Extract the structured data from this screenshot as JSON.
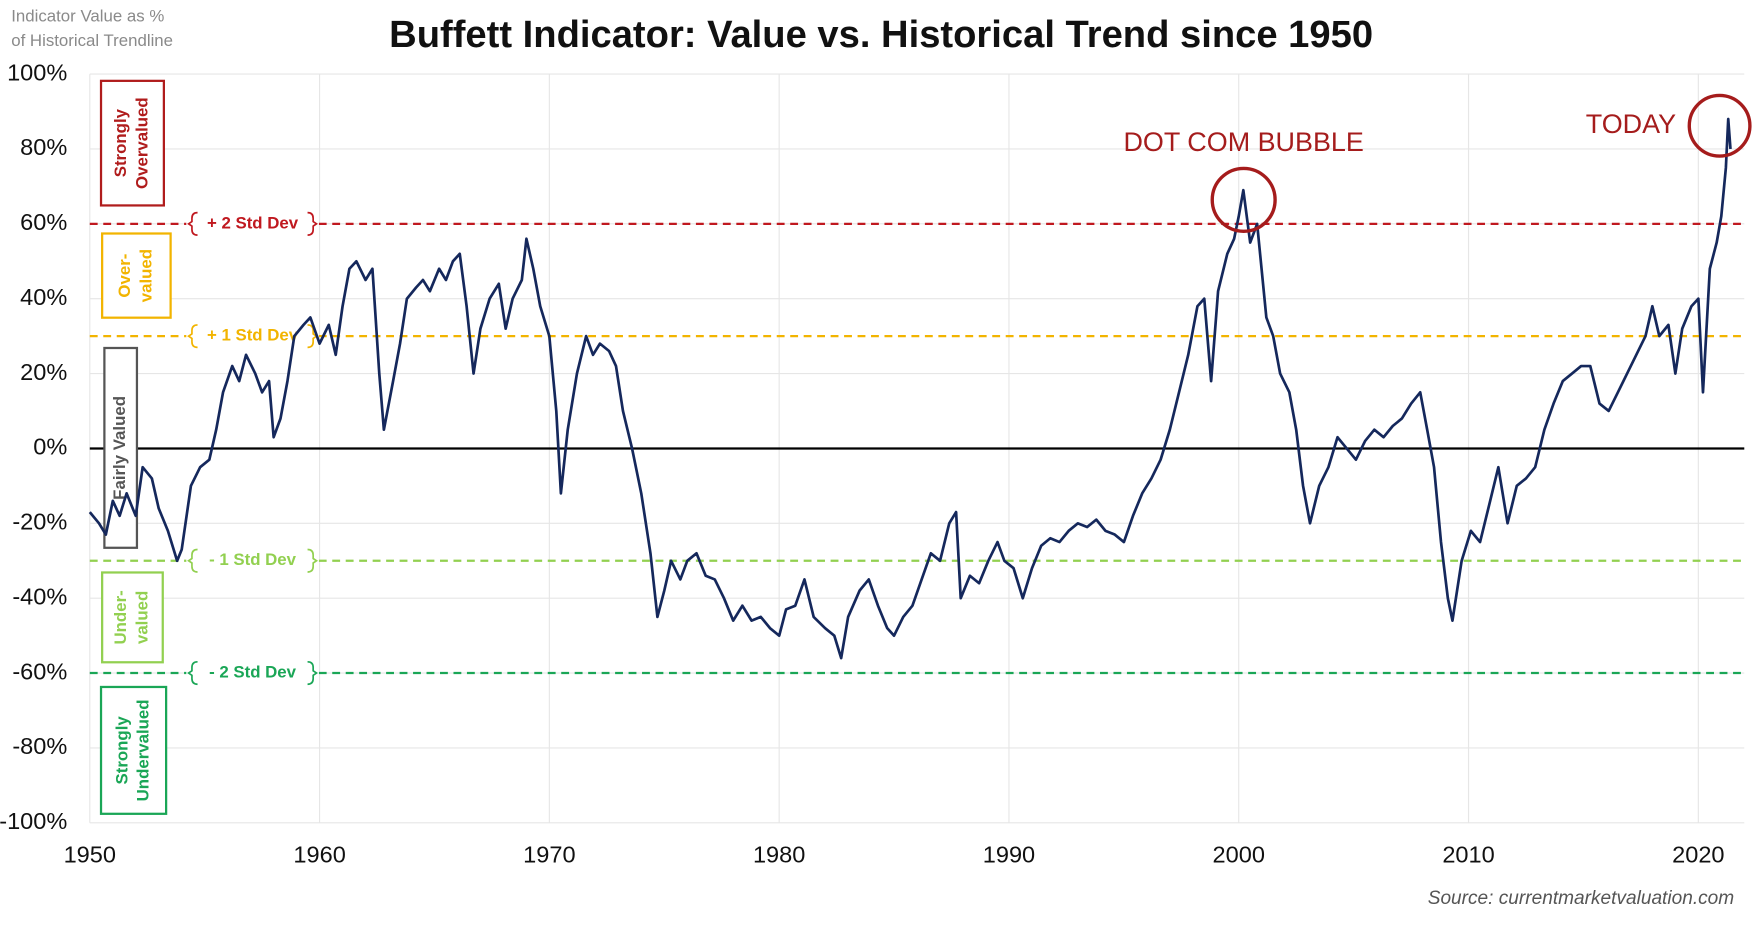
{
  "chart_data": {
    "type": "line",
    "title": "Buffett Indicator: Value vs. Historical Trend since 1950",
    "y_label": [
      "Indicator Value as %",
      "of Historical Trendline"
    ],
    "source": "Source: currentmarketvaluation.com",
    "xlim": [
      1950,
      2022
    ],
    "xticks": [
      1950,
      1960,
      1970,
      1980,
      1990,
      2000,
      2010,
      2020
    ],
    "ylim": [
      -100,
      100
    ],
    "yticks": [
      {
        "value": -100,
        "label": "-100%"
      },
      {
        "value": -80,
        "label": "-80%"
      },
      {
        "value": -60,
        "label": "-60%"
      },
      {
        "value": -40,
        "label": "-40%"
      },
      {
        "value": -20,
        "label": "-20%"
      },
      {
        "value": 0,
        "label": "0%"
      },
      {
        "value": 20,
        "label": "20%"
      },
      {
        "value": 40,
        "label": "40%"
      },
      {
        "value": 60,
        "label": "60%"
      },
      {
        "value": 80,
        "label": "80%"
      },
      {
        "value": 100,
        "label": "100%"
      }
    ],
    "grid": true,
    "reference_lines": [
      {
        "value": 60,
        "label": "+ 2 Std Dev",
        "color": "#c0181f"
      },
      {
        "value": 30,
        "label": "+ 1 Std Dev",
        "color": "#f2b400"
      },
      {
        "value": -30,
        "label": "- 1 Std Dev",
        "color": "#92d050"
      },
      {
        "value": -60,
        "label": "- 2 Std Dev",
        "color": "#1aa656"
      }
    ],
    "zones": [
      {
        "lines": [
          "Strongly",
          "Overvalued"
        ],
        "color": "#b01c1c"
      },
      {
        "lines": [
          "Over-",
          "valued"
        ],
        "color": "#f2b400"
      },
      {
        "lines": [
          "Fairly Valued"
        ],
        "color": "#555555"
      },
      {
        "lines": [
          "Under-",
          "valued"
        ],
        "color": "#92d050"
      },
      {
        "lines": [
          "Strongly",
          "Undervalued"
        ],
        "color": "#1aa656"
      }
    ],
    "annotations": [
      {
        "text": "DOT COM BUBBLE",
        "color": "#a51c1c"
      },
      {
        "text": "TODAY",
        "color": "#a51c1c"
      }
    ],
    "series": [
      {
        "name": "Buffett Indicator",
        "color": "#15285c",
        "x": [
          1950.0,
          1950.4,
          1950.7,
          1951.0,
          1951.3,
          1951.6,
          1952.0,
          1952.3,
          1952.7,
          1953.0,
          1953.4,
          1953.8,
          1954.0,
          1954.4,
          1954.8,
          1955.2,
          1955.5,
          1955.8,
          1956.2,
          1956.5,
          1956.8,
          1957.2,
          1957.5,
          1957.8,
          1958.0,
          1958.3,
          1958.6,
          1958.9,
          1959.3,
          1959.6,
          1960.0,
          1960.4,
          1960.7,
          1961.0,
          1961.3,
          1961.6,
          1962.0,
          1962.3,
          1962.6,
          1962.8,
          1963.2,
          1963.5,
          1963.8,
          1964.2,
          1964.5,
          1964.8,
          1965.2,
          1965.5,
          1965.8,
          1966.1,
          1966.4,
          1966.7,
          1967.0,
          1967.4,
          1967.8,
          1968.1,
          1968.4,
          1968.8,
          1969.0,
          1969.3,
          1969.6,
          1970.0,
          1970.3,
          1970.5,
          1970.8,
          1971.2,
          1971.6,
          1971.9,
          1972.2,
          1972.6,
          1972.9,
          1973.2,
          1973.6,
          1974.0,
          1974.4,
          1974.7,
          1975.0,
          1975.3,
          1975.7,
          1976.0,
          1976.4,
          1976.8,
          1977.2,
          1977.6,
          1978.0,
          1978.4,
          1978.8,
          1979.2,
          1979.6,
          1980.0,
          1980.3,
          1980.7,
          1981.1,
          1981.5,
          1982.0,
          1982.4,
          1982.7,
          1983.0,
          1983.5,
          1983.9,
          1984.3,
          1984.7,
          1985.0,
          1985.4,
          1985.8,
          1986.2,
          1986.6,
          1987.0,
          1987.4,
          1987.7,
          1987.9,
          1988.3,
          1988.7,
          1989.1,
          1989.5,
          1989.8,
          1990.2,
          1990.6,
          1991.0,
          1991.4,
          1991.8,
          1992.2,
          1992.6,
          1993.0,
          1993.4,
          1993.8,
          1994.2,
          1994.6,
          1995.0,
          1995.4,
          1995.8,
          1996.2,
          1996.6,
          1997.0,
          1997.4,
          1997.8,
          1998.2,
          1998.5,
          1998.8,
          1999.1,
          1999.5,
          1999.8,
          2000.0,
          2000.2,
          2000.5,
          2000.8,
          2001.2,
          2001.5,
          2001.8,
          2002.2,
          2002.5,
          2002.8,
          2003.1,
          2003.5,
          2003.9,
          2004.3,
          2004.7,
          2005.1,
          2005.5,
          2005.9,
          2006.3,
          2006.7,
          2007.1,
          2007.5,
          2007.9,
          2008.2,
          2008.5,
          2008.8,
          2009.1,
          2009.3,
          2009.7,
          2010.1,
          2010.5,
          2010.9,
          2011.3,
          2011.7,
          2012.1,
          2012.5,
          2012.9,
          2013.3,
          2013.7,
          2014.1,
          2014.5,
          2014.9,
          2015.3,
          2015.7,
          2016.1,
          2016.5,
          2016.9,
          2017.3,
          2017.7,
          2018.0,
          2018.3,
          2018.7,
          2019.0,
          2019.3,
          2019.7,
          2020.0,
          2020.2,
          2020.5,
          2020.8,
          2021.0,
          2021.2,
          2021.3,
          2021.4
        ],
        "values": [
          -17,
          -20,
          -23,
          -14,
          -18,
          -12,
          -18,
          -5,
          -8,
          -16,
          -22,
          -30,
          -27,
          -10,
          -5,
          -3,
          5,
          15,
          22,
          18,
          25,
          20,
          15,
          18,
          3,
          8,
          18,
          30,
          33,
          35,
          28,
          33,
          25,
          38,
          48,
          50,
          45,
          48,
          20,
          5,
          18,
          28,
          40,
          43,
          45,
          42,
          48,
          45,
          50,
          52,
          38,
          20,
          32,
          40,
          44,
          32,
          40,
          45,
          56,
          48,
          38,
          30,
          10,
          -12,
          5,
          20,
          30,
          25,
          28,
          26,
          22,
          10,
          0,
          -12,
          -28,
          -45,
          -38,
          -30,
          -35,
          -30,
          -28,
          -34,
          -35,
          -40,
          -46,
          -42,
          -46,
          -45,
          -48,
          -50,
          -43,
          -42,
          -35,
          -45,
          -48,
          -50,
          -56,
          -45,
          -38,
          -35,
          -42,
          -48,
          -50,
          -45,
          -42,
          -35,
          -28,
          -30,
          -20,
          -17,
          -40,
          -34,
          -36,
          -30,
          -25,
          -30,
          -32,
          -40,
          -32,
          -26,
          -24,
          -25,
          -22,
          -20,
          -21,
          -19,
          -22,
          -23,
          -25,
          -18,
          -12,
          -8,
          -3,
          5,
          15,
          25,
          38,
          40,
          18,
          42,
          52,
          56,
          62,
          69,
          55,
          60,
          35,
          30,
          20,
          15,
          5,
          -10,
          -20,
          -10,
          -5,
          3,
          0,
          -3,
          2,
          5,
          3,
          6,
          8,
          12,
          15,
          5,
          -5,
          -25,
          -40,
          -46,
          -30,
          -22,
          -25,
          -15,
          -5,
          -20,
          -10,
          -8,
          -5,
          5,
          12,
          18,
          20,
          22,
          22,
          12,
          10,
          15,
          20,
          25,
          30,
          38,
          30,
          33,
          20,
          32,
          38,
          40,
          15,
          48,
          55,
          62,
          75,
          88,
          80
        ]
      }
    ]
  }
}
